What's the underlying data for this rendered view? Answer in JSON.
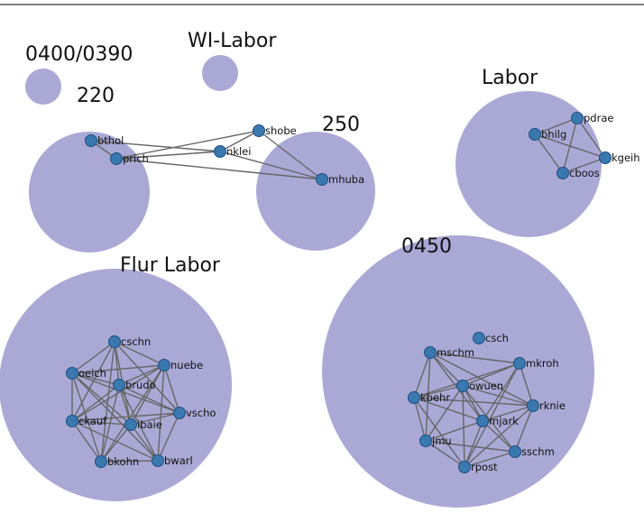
{
  "groups": [
    {
      "id": "g0400",
      "label": "0400/0390"
    },
    {
      "id": "gwi",
      "label": "WI-Labor"
    },
    {
      "id": "g220",
      "label": "220"
    },
    {
      "id": "g250",
      "label": "250"
    },
    {
      "id": "glabor",
      "label": "Labor"
    },
    {
      "id": "gflur",
      "label": "Flur Labor"
    },
    {
      "id": "g0450",
      "label": "0450"
    }
  ],
  "nodes": [
    {
      "id": "bthol",
      "label": "bthol",
      "group": "g220"
    },
    {
      "id": "prich",
      "label": "prich",
      "group": "g220"
    },
    {
      "id": "nklei",
      "label": "nklei",
      "group": "g220"
    },
    {
      "id": "shobe",
      "label": "shobe",
      "group": "g250"
    },
    {
      "id": "mhuba",
      "label": "mhuba",
      "group": "g250"
    },
    {
      "id": "pdrae",
      "label": "pdrae",
      "group": "glabor"
    },
    {
      "id": "bhilg",
      "label": "bhilg",
      "group": "glabor"
    },
    {
      "id": "kgeih",
      "label": "kgeih",
      "group": "glabor"
    },
    {
      "id": "cboos",
      "label": "cboos",
      "group": "glabor"
    },
    {
      "id": "cschn",
      "label": "cschn",
      "group": "gflur"
    },
    {
      "id": "nuebe",
      "label": "nuebe",
      "group": "gflur"
    },
    {
      "id": "oeich",
      "label": "oeich",
      "group": "gflur"
    },
    {
      "id": "brudo",
      "label": "brudo",
      "group": "gflur"
    },
    {
      "id": "vscho",
      "label": "vscho",
      "group": "gflur"
    },
    {
      "id": "ckauf",
      "label": "ckauf",
      "group": "gflur"
    },
    {
      "id": "ibaie",
      "label": "ibaie",
      "group": "gflur"
    },
    {
      "id": "bkohn",
      "label": "bkohn",
      "group": "gflur"
    },
    {
      "id": "bwarl",
      "label": "bwarl",
      "group": "gflur"
    },
    {
      "id": "csch",
      "label": "csch",
      "group": "g0450"
    },
    {
      "id": "mschm",
      "label": "mschm",
      "group": "g0450"
    },
    {
      "id": "mkroh",
      "label": "mkroh",
      "group": "g0450"
    },
    {
      "id": "owuen",
      "label": "owuen",
      "group": "g0450"
    },
    {
      "id": "kbehr",
      "label": "kbehr",
      "group": "g0450"
    },
    {
      "id": "rknie",
      "label": "rknie",
      "group": "g0450"
    },
    {
      "id": "mjark",
      "label": "mjark",
      "group": "g0450"
    },
    {
      "id": "jmu",
      "label": "jmu",
      "group": "g0450"
    },
    {
      "id": "sschm",
      "label": "sschm",
      "group": "g0450"
    },
    {
      "id": "rpost",
      "label": "rpost",
      "group": "g0450"
    }
  ],
  "edges": [
    [
      "bthol",
      "nklei"
    ],
    [
      "prich",
      "nklei"
    ],
    [
      "bthol",
      "prich"
    ],
    [
      "prich",
      "shobe"
    ],
    [
      "prich",
      "mhuba"
    ],
    [
      "nklei",
      "shobe"
    ],
    [
      "nklei",
      "mhuba"
    ],
    [
      "shobe",
      "mhuba"
    ],
    [
      "bhilg",
      "pdrae"
    ],
    [
      "bhilg",
      "kgeih"
    ],
    [
      "bhilg",
      "cboos"
    ],
    [
      "pdrae",
      "kgeih"
    ],
    [
      "pdrae",
      "cboos"
    ],
    [
      "kgeih",
      "cboos"
    ],
    [
      "cschn",
      "nuebe"
    ],
    [
      "cschn",
      "oeich"
    ],
    [
      "cschn",
      "brudo"
    ],
    [
      "cschn",
      "ckauf"
    ],
    [
      "cschn",
      "ibaie"
    ],
    [
      "cschn",
      "bkohn"
    ],
    [
      "cschn",
      "vscho"
    ],
    [
      "nuebe",
      "oeich"
    ],
    [
      "nuebe",
      "brudo"
    ],
    [
      "nuebe",
      "vscho"
    ],
    [
      "nuebe",
      "ckauf"
    ],
    [
      "nuebe",
      "ibaie"
    ],
    [
      "nuebe",
      "bkohn"
    ],
    [
      "nuebe",
      "bwarl"
    ],
    [
      "oeich",
      "brudo"
    ],
    [
      "oeich",
      "ckauf"
    ],
    [
      "oeich",
      "ibaie"
    ],
    [
      "oeich",
      "bkohn"
    ],
    [
      "oeich",
      "bwarl"
    ],
    [
      "oeich",
      "vscho"
    ],
    [
      "brudo",
      "ckauf"
    ],
    [
      "brudo",
      "ibaie"
    ],
    [
      "brudo",
      "vscho"
    ],
    [
      "brudo",
      "bkohn"
    ],
    [
      "brudo",
      "bwarl"
    ],
    [
      "vscho",
      "ibaie"
    ],
    [
      "vscho",
      "bwarl"
    ],
    [
      "vscho",
      "ckauf"
    ],
    [
      "ckauf",
      "ibaie"
    ],
    [
      "ckauf",
      "bkohn"
    ],
    [
      "ckauf",
      "bwarl"
    ],
    [
      "ibaie",
      "bkohn"
    ],
    [
      "ibaie",
      "bwarl"
    ],
    [
      "bkohn",
      "bwarl"
    ],
    [
      "mschm",
      "mkroh"
    ],
    [
      "mschm",
      "owuen"
    ],
    [
      "mschm",
      "kbehr"
    ],
    [
      "mschm",
      "jmu"
    ],
    [
      "mschm",
      "rknie"
    ],
    [
      "mschm",
      "mjark"
    ],
    [
      "mkroh",
      "owuen"
    ],
    [
      "mkroh",
      "rknie"
    ],
    [
      "mkroh",
      "kbehr"
    ],
    [
      "mkroh",
      "mjark"
    ],
    [
      "mkroh",
      "rpost"
    ],
    [
      "owuen",
      "kbehr"
    ],
    [
      "owuen",
      "rknie"
    ],
    [
      "owuen",
      "mjark"
    ],
    [
      "owuen",
      "jmu"
    ],
    [
      "owuen",
      "rpost"
    ],
    [
      "owuen",
      "sschm"
    ],
    [
      "kbehr",
      "jmu"
    ],
    [
      "kbehr",
      "rpost"
    ],
    [
      "kbehr",
      "mjark"
    ],
    [
      "kbehr",
      "rknie"
    ],
    [
      "rknie",
      "mjark"
    ],
    [
      "rknie",
      "sschm"
    ],
    [
      "rknie",
      "rpost"
    ],
    [
      "mjark",
      "jmu"
    ],
    [
      "mjark",
      "sschm"
    ],
    [
      "mjark",
      "rpost"
    ],
    [
      "jmu",
      "rpost"
    ],
    [
      "jmu",
      "sschm"
    ],
    [
      "sschm",
      "rpost"
    ]
  ]
}
